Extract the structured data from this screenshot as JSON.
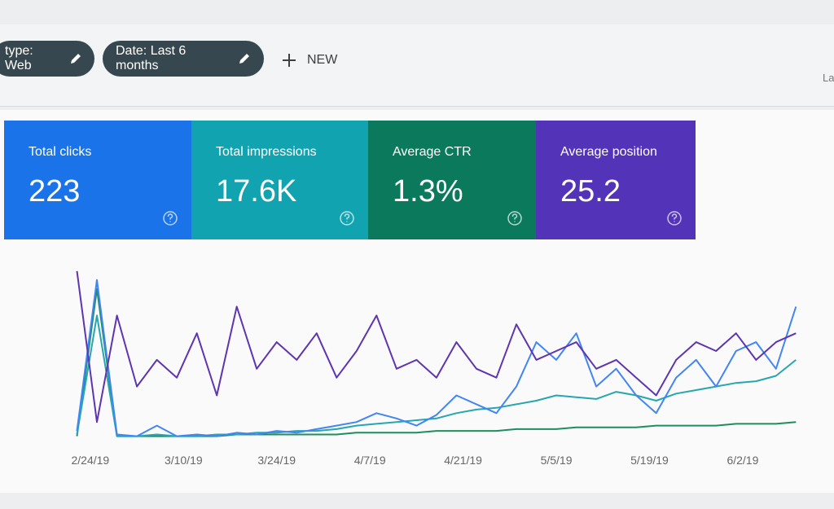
{
  "filters": [
    "type: Web",
    "Date: Last 6 months"
  ],
  "new_button": "NEW",
  "corner_text": "La",
  "metrics": [
    {
      "label": "Total clicks",
      "value": "223"
    },
    {
      "label": "Total impressions",
      "value": "17.6K"
    },
    {
      "label": "Average CTR",
      "value": "1.3%"
    },
    {
      "label": "Average position",
      "value": "25.2"
    }
  ],
  "chart_data": {
    "type": "line",
    "x": [
      -2,
      1,
      4,
      7,
      10,
      13,
      16,
      19,
      22,
      25,
      28,
      31,
      34,
      37,
      40,
      43,
      46,
      49,
      52,
      55,
      58,
      61,
      64,
      67,
      70,
      73,
      76,
      79,
      82,
      85,
      88,
      91,
      94,
      97,
      100,
      103,
      106
    ],
    "xlim": [
      -5,
      110
    ],
    "xticks": [
      {
        "value": 0,
        "label": "2/24/19"
      },
      {
        "value": 14,
        "label": "3/10/19"
      },
      {
        "value": 28,
        "label": "3/24/19"
      },
      {
        "value": 42,
        "label": "4/7/19"
      },
      {
        "value": 56,
        "label": "4/21/19"
      },
      {
        "value": 70,
        "label": "5/5/19"
      },
      {
        "value": 84,
        "label": "5/19/19"
      },
      {
        "value": 98,
        "label": "6/2/19"
      }
    ],
    "ylim": [
      0,
      100
    ],
    "series": [
      {
        "color": "#5e35b1",
        "values": [
          95,
          10,
          70,
          30,
          45,
          35,
          60,
          25,
          75,
          40,
          55,
          45,
          60,
          35,
          50,
          70,
          40,
          45,
          35,
          55,
          40,
          35,
          65,
          45,
          50,
          55,
          40,
          45,
          35,
          25,
          45,
          55,
          50,
          60,
          45,
          55,
          60
        ]
      },
      {
        "color": "#4285f4",
        "values": [
          5,
          90,
          3,
          2,
          8,
          2,
          3,
          2,
          4,
          3,
          5,
          4,
          6,
          8,
          10,
          15,
          12,
          8,
          14,
          25,
          20,
          15,
          30,
          55,
          45,
          60,
          30,
          40,
          25,
          15,
          35,
          45,
          30,
          50,
          55,
          40,
          75
        ]
      },
      {
        "color": "#26a6b0",
        "values": [
          3,
          70,
          2,
          2,
          3,
          2,
          2,
          3,
          3,
          4,
          4,
          5,
          5,
          6,
          8,
          9,
          10,
          11,
          12,
          15,
          17,
          18,
          20,
          22,
          25,
          24,
          23,
          27,
          25,
          22,
          26,
          28,
          30,
          32,
          33,
          36,
          45
        ]
      },
      {
        "color": "#1e8e5e",
        "values": [
          2,
          85,
          2,
          2,
          2,
          2,
          2,
          2,
          3,
          3,
          3,
          3,
          3,
          3,
          4,
          4,
          4,
          4,
          5,
          5,
          5,
          5,
          6,
          6,
          6,
          7,
          7,
          7,
          7,
          8,
          8,
          8,
          8,
          9,
          9,
          9,
          10
        ]
      }
    ]
  }
}
